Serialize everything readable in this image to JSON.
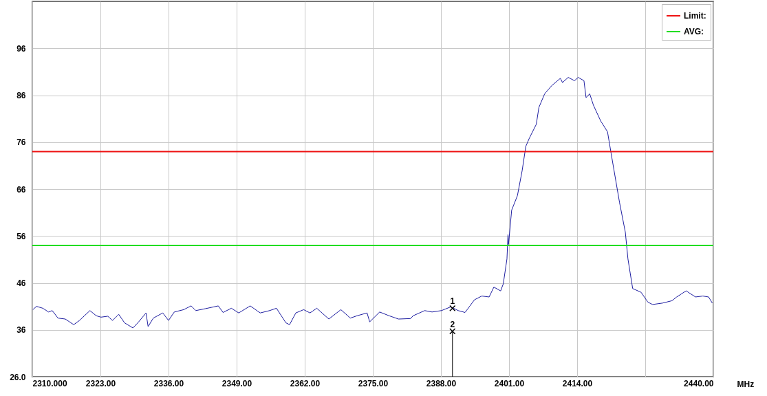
{
  "chart_data": {
    "type": "line",
    "xlabel": "MHz",
    "xlim": [
      2310,
      2440
    ],
    "xticks": [
      {
        "value": 2310,
        "label": "2310.000"
      },
      {
        "value": 2323,
        "label": "2323.00"
      },
      {
        "value": 2336,
        "label": "2336.00"
      },
      {
        "value": 2349,
        "label": "2349.00"
      },
      {
        "value": 2362,
        "label": "2362.00"
      },
      {
        "value": 2375,
        "label": "2375.00"
      },
      {
        "value": 2388,
        "label": "2388.00"
      },
      {
        "value": 2401,
        "label": "2401.00"
      },
      {
        "value": 2414,
        "label": "2414.00"
      },
      {
        "value": 2427,
        "label": null
      },
      {
        "value": 2440,
        "label": "2440.00"
      }
    ],
    "ylim": [
      26,
      106
    ],
    "yticks": [
      {
        "value": 26,
        "label": "26.0"
      },
      36,
      46,
      56,
      66,
      76,
      86,
      96
    ],
    "grid": true,
    "legend": "top right",
    "marker": "none",
    "line_style": "solid",
    "series": [
      {
        "color": "#1c1ca0",
        "x": [
          2310.1,
          2310.8,
          2312.0,
          2313.1,
          2313.8,
          2314.9,
          2316.3,
          2317.9,
          2319.0,
          2321.0,
          2322.2,
          2323.1,
          2324.4,
          2325.3,
          2326.5,
          2327.6,
          2329.2,
          2330.3,
          2331.7,
          2332.1,
          2333.1,
          2334.9,
          2336.0,
          2337.1,
          2338.9,
          2340.3,
          2341.2,
          2343.0,
          2345.5,
          2346.4,
          2348.0,
          2349.4,
          2351.6,
          2353.5,
          2355.3,
          2356.6,
          2358.4,
          2359.1,
          2360.3,
          2361.8,
          2363.0,
          2364.3,
          2366.6,
          2368.9,
          2370.7,
          2372.0,
          2373.9,
          2374.4,
          2376.3,
          2378.1,
          2379.9,
          2382.2,
          2382.7,
          2384.9,
          2386.3,
          2388.1,
          2389.9,
          2391.3,
          2392.6,
          2394.4,
          2395.8,
          2397.2,
          2398.1,
          2399.4,
          2399.9,
          2400.6,
          2400.8,
          2400.9,
          2401.5,
          2402.6,
          2403.5,
          2404.2,
          2404.9,
          2406.2,
          2406.7,
          2407.8,
          2409.2,
          2410.8,
          2411.2,
          2412.3,
          2413.5,
          2414.2,
          2415.3,
          2415.7,
          2416.4,
          2417.1,
          2418.5,
          2419.8,
          2420.5,
          2422.1,
          2423.2,
          2423.7,
          2424.6,
          2426.2,
          2427.5,
          2428.4,
          2430.3,
          2432.1,
          2433.0,
          2434.8,
          2436.6,
          2438.0,
          2439.1,
          2439.8
        ],
        "values": [
          40.3,
          41.0,
          40.6,
          39.8,
          40.1,
          38.5,
          38.3,
          37.1,
          38.0,
          40.1,
          39.0,
          38.7,
          38.9,
          38.0,
          39.3,
          37.5,
          36.4,
          37.7,
          39.6,
          36.7,
          38.5,
          39.6,
          38.0,
          39.8,
          40.3,
          41.1,
          40.1,
          40.5,
          41.1,
          39.7,
          40.6,
          39.6,
          41.1,
          39.6,
          40.1,
          40.6,
          37.5,
          37.1,
          39.6,
          40.3,
          39.6,
          40.6,
          38.3,
          40.3,
          38.5,
          39.0,
          39.6,
          37.7,
          39.8,
          39.0,
          38.3,
          38.4,
          39.0,
          40.1,
          39.8,
          40.1,
          40.9,
          40.1,
          39.7,
          42.4,
          43.2,
          43.0,
          45.1,
          44.3,
          45.8,
          51.1,
          56.3,
          54.2,
          61.5,
          64.6,
          69.9,
          75.1,
          76.9,
          79.8,
          83.4,
          86.3,
          88.1,
          89.6,
          88.7,
          89.8,
          89.1,
          89.8,
          89.1,
          85.5,
          86.3,
          83.9,
          80.5,
          78.2,
          73.5,
          63.1,
          56.8,
          51.1,
          44.8,
          44.0,
          41.9,
          41.4,
          41.7,
          42.2,
          43.0,
          44.3,
          43.0,
          43.2,
          43.0,
          41.7
        ]
      },
      {
        "type": "scatter",
        "color": "#000000",
        "marker": "cross",
        "x": [
          2390.2,
          2390.2
        ],
        "values": [
          40.6,
          35.7
        ]
      }
    ],
    "annotations": [
      "1",
      "2"
    ],
    "ref_lines": [
      {
        "axis": "y",
        "value": 74,
        "label": "Limit:",
        "color": "#ee1111"
      },
      {
        "axis": "y",
        "value": 54,
        "label": "AVG:",
        "color": "#22dd22"
      }
    ]
  }
}
